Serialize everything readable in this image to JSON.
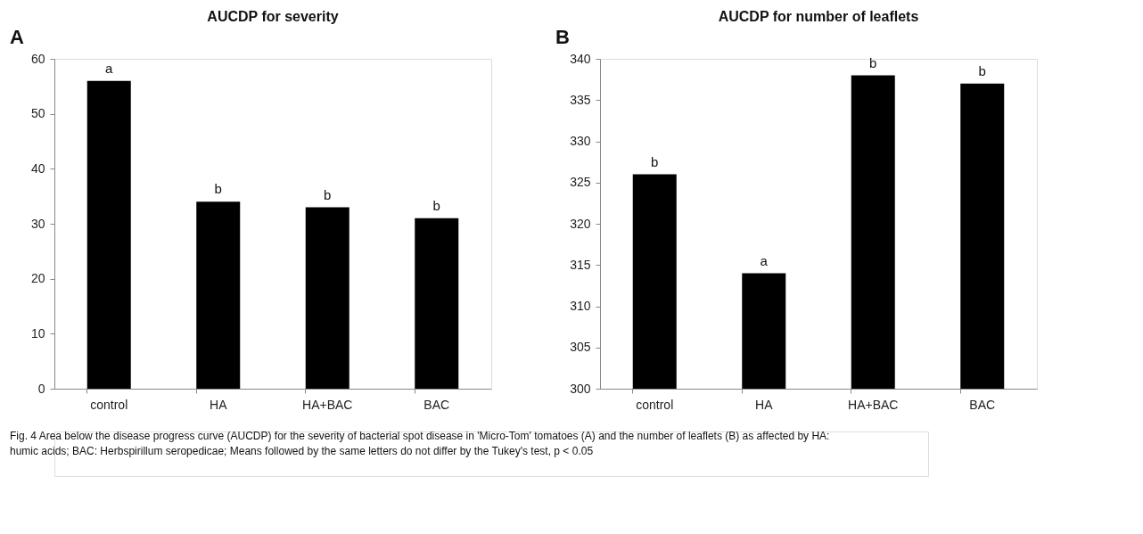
{
  "chart_data": [
    {
      "type": "bar",
      "title": "AUCDP for severity",
      "categories": [
        "control",
        "HA",
        "HA+BAC",
        "BAC"
      ],
      "values": [
        56,
        34,
        33,
        31
      ],
      "color": "#000000",
      "ylim": [
        0,
        60
      ],
      "yticks": [
        0,
        10,
        20,
        30,
        40,
        50,
        60
      ],
      "grid": false,
      "annotations": [
        "A",
        {
          "text": "a",
          "x": "control",
          "y": 56
        },
        {
          "text": "b",
          "x": "HA",
          "y": 34
        },
        {
          "text": "b",
          "x": "HA+BAC",
          "y": 33
        },
        {
          "text": "b",
          "x": "BAC",
          "y": 31
        },
        "Fig. 4  Area below the disease progress curve (AUCDP) for the severity of bacterial spot disease in 'Micro-Tom' tomatoes (A) and the number of leaflets (B) as affected by HA: humic acids; BAC: Herbspirillum seropedicae; Means followed by the same letters do not differ by the Tukey's test, p < 0.05"
      ]
    },
    {
      "type": "bar",
      "title": "AUCDP for number of leaflets",
      "categories": [
        "control",
        "HA",
        "HA+BAC",
        "BAC"
      ],
      "values": [
        326,
        314,
        338,
        337
      ],
      "color": "#000000",
      "ylim": [
        300,
        340
      ],
      "yticks": [
        300,
        305,
        310,
        315,
        320,
        325,
        330,
        335,
        340
      ],
      "grid": false,
      "annotations": [
        "B",
        {
          "text": "b",
          "x": "control",
          "y": 326
        },
        {
          "text": "a",
          "x": "HA",
          "y": 314
        },
        {
          "text": "b",
          "x": "HA+BAC",
          "y": 338
        },
        {
          "text": "b",
          "x": "BAC",
          "y": 337
        }
      ]
    }
  ]
}
